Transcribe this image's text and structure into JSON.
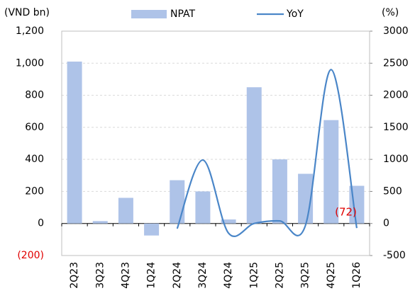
{
  "chart_data": {
    "type": "bar",
    "y_label": "(VND bn)",
    "y2_label": "(%)",
    "categories": [
      "2Q23",
      "3Q23",
      "4Q23",
      "1Q24",
      "2Q24",
      "3Q24",
      "4Q24",
      "1Q25",
      "2Q25",
      "3Q25",
      "4Q25",
      "1Q26"
    ],
    "series": [
      {
        "name": "NPAT",
        "type": "bar",
        "color": "#aec3e8",
        "values": [
          1010,
          15,
          160,
          -75,
          270,
          200,
          25,
          850,
          400,
          310,
          645,
          235
        ]
      },
      {
        "name": "YoY",
        "type": "line",
        "axis": "y2",
        "color": "#4a86c8",
        "values": [
          null,
          null,
          null,
          null,
          -80,
          990,
          -150,
          0,
          40,
          -30,
          2400,
          -72
        ],
        "value_labels": [
          null,
          null,
          null,
          null,
          null,
          null,
          null,
          null,
          null,
          null,
          null,
          "(72)"
        ],
        "label_color": "#e00000"
      }
    ],
    "ylim": [
      -200,
      1200
    ],
    "yticks": [
      {
        "value": -200,
        "label": "(200)"
      },
      0,
      200,
      400,
      600,
      800,
      {
        "value": 1000,
        "label": "1,000"
      },
      {
        "value": 1200,
        "label": "1,200"
      }
    ],
    "negative_tick_color": "#e00000",
    "y2lim": [
      -500,
      3000
    ],
    "y2ticks": [
      -500,
      0,
      500,
      1000,
      1500,
      2000,
      2500,
      3000
    ],
    "grid": true,
    "legend": "top"
  }
}
